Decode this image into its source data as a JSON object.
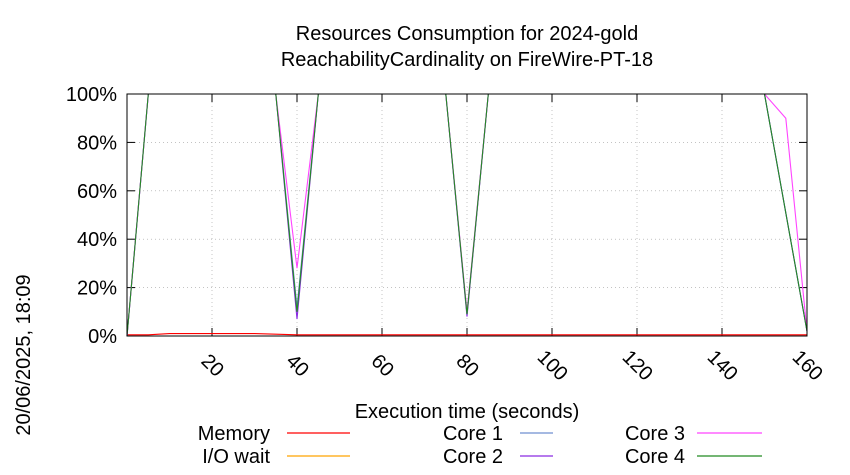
{
  "chart_data": {
    "type": "line",
    "title_lines": [
      "Resources Consumption for 2024-gold",
      "ReachabilityCardinality on FireWire-PT-18"
    ],
    "xlabel": "Execution time (seconds)",
    "ylabel": "",
    "timestamp": "20/06/2025, 18:09",
    "xlim": [
      0,
      160
    ],
    "ylim": [
      0,
      100
    ],
    "xticks": [
      20,
      40,
      60,
      80,
      100,
      120,
      140,
      160
    ],
    "yticks": [
      0,
      20,
      40,
      60,
      80,
      100
    ],
    "ytick_labels": [
      "0%",
      "20%",
      "40%",
      "60%",
      "80%",
      "100%"
    ],
    "grid": true,
    "legend_position": "bottom",
    "series": [
      {
        "name": "Memory",
        "color": "#ff0000",
        "x": [
          0,
          5,
          10,
          20,
          30,
          40,
          45,
          60,
          80,
          85,
          100,
          120,
          140,
          150,
          155,
          160
        ],
        "y": [
          0.5,
          0.5,
          1,
          1,
          1,
          0.5,
          0.5,
          0.5,
          0.5,
          0.5,
          0.5,
          0.5,
          0.5,
          0.5,
          0.5,
          0.5
        ]
      },
      {
        "name": "I/O wait",
        "color": "#ffa500",
        "x": [
          0,
          160
        ],
        "y": [
          0,
          0
        ]
      },
      {
        "name": "Core 1",
        "color": "#6f8fd0",
        "x": [
          0,
          5,
          35,
          40,
          45,
          75,
          80,
          85,
          150,
          160
        ],
        "y": [
          0,
          100,
          100,
          12,
          100,
          100,
          9,
          100,
          100,
          2
        ]
      },
      {
        "name": "Core 2",
        "color": "#8a2be2",
        "x": [
          0,
          5,
          35,
          40,
          45,
          75,
          80,
          85,
          150,
          160
        ],
        "y": [
          0,
          100,
          100,
          7,
          100,
          100,
          8,
          100,
          100,
          2
        ]
      },
      {
        "name": "Core 3",
        "color": "#ff44ff",
        "x": [
          0,
          5,
          35,
          40,
          45,
          75,
          80,
          85,
          150,
          155,
          160
        ],
        "y": [
          0,
          100,
          100,
          28,
          100,
          100,
          10,
          100,
          100,
          90,
          2
        ]
      },
      {
        "name": "Core 4",
        "color": "#228b22",
        "x": [
          0,
          5,
          35,
          40,
          45,
          75,
          80,
          85,
          150,
          160
        ],
        "y": [
          0,
          100,
          100,
          10,
          100,
          100,
          9,
          100,
          100,
          2
        ]
      }
    ]
  }
}
